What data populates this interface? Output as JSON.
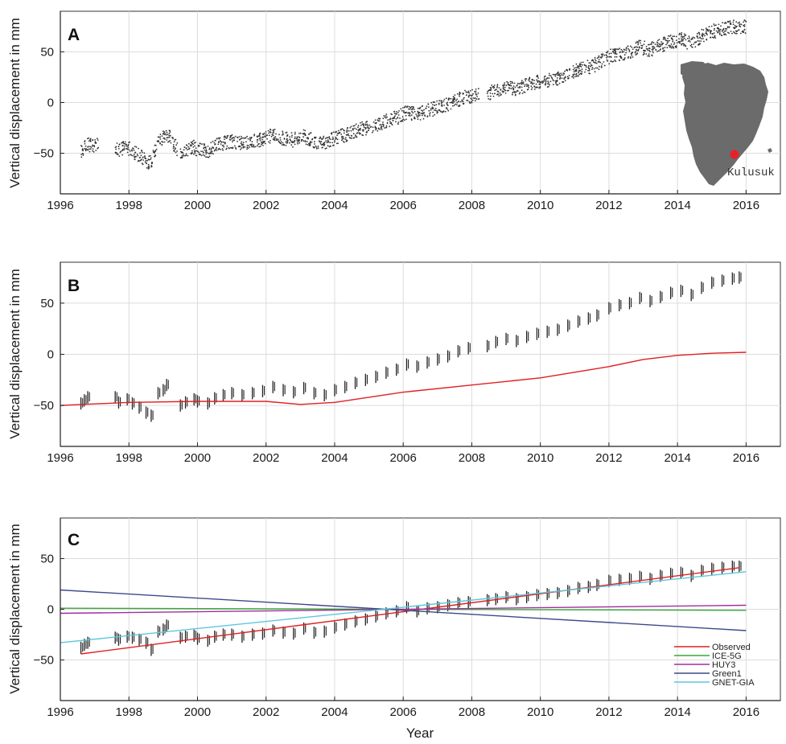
{
  "xlabel": "Year",
  "panel_a_label": "A",
  "panel_b_label": "B",
  "panel_c_label": "C",
  "map_label": "Kulusuk",
  "chart_data": [
    {
      "id": "A",
      "type": "scatter",
      "ylabel": "Vertical displacement in mm",
      "xlim": [
        1996,
        2017
      ],
      "ylim": [
        -90,
        90
      ],
      "xticks": [
        1996,
        1998,
        2000,
        2002,
        2004,
        2006,
        2008,
        2010,
        2012,
        2014,
        2016
      ],
      "yticks": [
        -50,
        0,
        50
      ],
      "grid": true,
      "marker_color": "#333333",
      "inset": {
        "label": "Kulusuk",
        "land_color": "#6b6b6b",
        "marker_color": "#e8202a"
      },
      "series": [
        {
          "x": [
            1996.6,
            1996.7,
            1996.8,
            1997.6,
            1997.7,
            1997.95,
            1998.1,
            1998.3,
            1998.5,
            1998.65,
            1998.85,
            1999.0,
            1999.1,
            1999.5,
            1999.65,
            1999.9,
            2000.0,
            2000.3,
            2000.5,
            2000.75,
            2001.0,
            2001.3,
            2001.6,
            2001.9,
            2002.2,
            2002.5,
            2002.8,
            2003.1,
            2003.4,
            2003.7,
            2004.0,
            2004.3,
            2004.6,
            2004.9,
            2005.2,
            2005.5,
            2005.8,
            2006.1,
            2006.4,
            2006.7,
            2007.0,
            2007.3,
            2007.6,
            2007.9,
            2008.45,
            2008.7,
            2009.0,
            2009.3,
            2009.6,
            2009.9,
            2010.2,
            2010.5,
            2010.8,
            2011.1,
            2011.4,
            2011.65,
            2012.0,
            2012.3,
            2012.6,
            2012.9,
            2013.2,
            2013.5,
            2013.8,
            2014.1,
            2014.4,
            2014.7,
            2015.0,
            2015.3,
            2015.6,
            2015.8
          ],
          "y": [
            -48,
            -45,
            -42,
            -42,
            -47,
            -44,
            -48,
            -52,
            -57,
            -60,
            -38,
            -35,
            -30,
            -50,
            -47,
            -44,
            -46,
            -48,
            -43,
            -40,
            -38,
            -40,
            -38,
            -36,
            -32,
            -35,
            -37,
            -33,
            -38,
            -40,
            -35,
            -32,
            -28,
            -25,
            -22,
            -18,
            -15,
            -10,
            -12,
            -8,
            -5,
            -2,
            3,
            6,
            8,
            12,
            15,
            13,
            17,
            20,
            22,
            24,
            28,
            32,
            35,
            38,
            45,
            48,
            50,
            55,
            52,
            56,
            60,
            62,
            58,
            65,
            70,
            72,
            74,
            75
          ]
        }
      ]
    },
    {
      "id": "B",
      "type": "line",
      "ylabel": "Vertical displacement in mm",
      "xlim": [
        1996,
        2017
      ],
      "ylim": [
        -90,
        90
      ],
      "xticks": [
        1996,
        1998,
        2000,
        2002,
        2004,
        2006,
        2008,
        2010,
        2012,
        2014,
        2016
      ],
      "yticks": [
        -50,
        0,
        50
      ],
      "grid": true,
      "series": [
        {
          "name": "",
          "style": "errorbar",
          "color": "#222222",
          "x": [
            1996.6,
            1996.7,
            1996.8,
            1997.6,
            1997.7,
            1997.95,
            1998.1,
            1998.3,
            1998.5,
            1998.65,
            1998.85,
            1999.0,
            1999.1,
            1999.5,
            1999.65,
            1999.9,
            2000.0,
            2000.3,
            2000.5,
            2000.75,
            2001.0,
            2001.3,
            2001.6,
            2001.9,
            2002.2,
            2002.5,
            2002.8,
            2003.1,
            2003.4,
            2003.7,
            2004.0,
            2004.3,
            2004.6,
            2004.9,
            2005.2,
            2005.5,
            2005.8,
            2006.1,
            2006.4,
            2006.7,
            2007.0,
            2007.3,
            2007.6,
            2007.9,
            2008.45,
            2008.7,
            2009.0,
            2009.3,
            2009.6,
            2009.9,
            2010.2,
            2010.5,
            2010.8,
            2011.1,
            2011.4,
            2011.65,
            2012.0,
            2012.3,
            2012.6,
            2012.9,
            2013.2,
            2013.5,
            2013.8,
            2014.1,
            2014.4,
            2014.7,
            2015.0,
            2015.3,
            2015.6,
            2015.8
          ],
          "y": [
            -48,
            -45,
            -42,
            -42,
            -47,
            -44,
            -48,
            -52,
            -57,
            -60,
            -38,
            -35,
            -30,
            -50,
            -47,
            -44,
            -46,
            -48,
            -43,
            -40,
            -38,
            -40,
            -38,
            -36,
            -32,
            -35,
            -37,
            -33,
            -38,
            -40,
            -35,
            -32,
            -28,
            -25,
            -22,
            -18,
            -15,
            -10,
            -12,
            -8,
            -5,
            -2,
            3,
            6,
            8,
            12,
            15,
            13,
            17,
            20,
            22,
            24,
            28,
            32,
            35,
            38,
            45,
            48,
            50,
            55,
            52,
            56,
            60,
            62,
            58,
            65,
            70,
            72,
            74,
            75
          ]
        },
        {
          "name": "",
          "style": "line",
          "color": "#e02020",
          "x": [
            1996,
            1998,
            2000,
            2002,
            2003,
            2004,
            2006,
            2008,
            2010,
            2012,
            2013,
            2014,
            2015,
            2016
          ],
          "y": [
            -50,
            -47,
            -46,
            -46,
            -49,
            -47,
            -37,
            -30,
            -23,
            -12,
            -5,
            -1,
            1,
            2
          ]
        }
      ]
    },
    {
      "id": "C",
      "type": "line",
      "ylabel": "Vertical displacement in mm",
      "xlim": [
        1996,
        2017
      ],
      "ylim": [
        -90,
        90
      ],
      "xticks": [
        1996,
        1998,
        2000,
        2002,
        2004,
        2006,
        2008,
        2010,
        2012,
        2014,
        2016
      ],
      "yticks": [
        -50,
        0,
        50
      ],
      "grid": true,
      "legend": "bottom-right",
      "series": [
        {
          "name": "",
          "style": "errorbar",
          "color": "#222222",
          "x": [
            1996.6,
            1996.7,
            1996.8,
            1997.6,
            1997.7,
            1997.95,
            1998.1,
            1998.3,
            1998.5,
            1998.65,
            1998.85,
            1999.0,
            1999.1,
            1999.5,
            1999.65,
            1999.9,
            2000.0,
            2000.3,
            2000.5,
            2000.75,
            2001.0,
            2001.3,
            2001.6,
            2001.9,
            2002.2,
            2002.5,
            2002.8,
            2003.1,
            2003.4,
            2003.7,
            2004.0,
            2004.3,
            2004.6,
            2004.9,
            2005.2,
            2005.5,
            2005.8,
            2006.1,
            2006.4,
            2006.7,
            2007.0,
            2007.3,
            2007.6,
            2007.9,
            2008.45,
            2008.7,
            2009.0,
            2009.3,
            2009.6,
            2009.9,
            2010.2,
            2010.5,
            2010.8,
            2011.1,
            2011.4,
            2011.65,
            2012.0,
            2012.3,
            2012.6,
            2012.9,
            2013.2,
            2013.5,
            2013.8,
            2014.1,
            2014.4,
            2014.7,
            2015.0,
            2015.3,
            2015.6,
            2015.8
          ],
          "y": [
            -38,
            -35,
            -33,
            -28,
            -30,
            -27,
            -28,
            -30,
            -33,
            -40,
            -22,
            -20,
            -16,
            -28,
            -27,
            -26,
            -29,
            -31,
            -27,
            -25,
            -25,
            -27,
            -25,
            -24,
            -21,
            -23,
            -24,
            -19,
            -23,
            -22,
            -18,
            -15,
            -12,
            -10,
            -7,
            -4,
            -2,
            2,
            -2,
            1,
            2,
            4,
            6,
            7,
            9,
            10,
            12,
            10,
            12,
            14,
            15,
            16,
            18,
            21,
            22,
            24,
            28,
            29,
            30,
            32,
            30,
            33,
            35,
            36,
            33,
            38,
            40,
            41,
            42,
            42
          ]
        },
        {
          "name": "Observed",
          "style": "line",
          "color": "#e02020",
          "x": [
            1996.6,
            2015.8
          ],
          "y": [
            -44,
            41
          ]
        },
        {
          "name": "ICE-5G",
          "style": "line",
          "color": "#3aa83a",
          "x": [
            1996,
            2016
          ],
          "y": [
            1,
            -1
          ]
        },
        {
          "name": "HUY3",
          "style": "line",
          "color": "#a02da0",
          "x": [
            1996,
            2016
          ],
          "y": [
            -4,
            4
          ]
        },
        {
          "name": "Green1",
          "style": "line",
          "color": "#3b4a8a",
          "x": [
            1996,
            2016
          ],
          "y": [
            19,
            -21
          ]
        },
        {
          "name": "GNET-GIA",
          "style": "line",
          "color": "#5cc8dc",
          "x": [
            1996,
            2016
          ],
          "y": [
            -33,
            37
          ]
        }
      ]
    }
  ]
}
